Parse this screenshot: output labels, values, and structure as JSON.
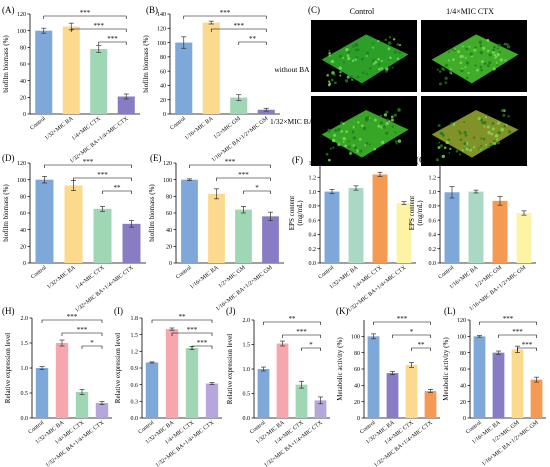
{
  "colors": {
    "blue": "#7EA7DA",
    "yellow": "#FBD98D",
    "green": "#9FD6B4",
    "purple": "#8A7CC4",
    "pink": "#F6A7AE",
    "orange": "#F59A52",
    "light_yellow": "#FCF3A4",
    "purple_light": "#B6A6DC",
    "blue_green": "#A9D8C4",
    "error_bar": "#333333"
  },
  "micrograph": {
    "panel_label": "(C)",
    "col_labels": [
      "Control",
      "1/4×MIC CTX"
    ],
    "row_labels": [
      "without BA",
      "1/32×MIC BA"
    ],
    "background": "#000000",
    "biofilm_colors": [
      "#2ea82a",
      "#43b52b",
      "#3aae28",
      "#8a9a2a"
    ]
  },
  "chart_data": [
    {
      "label": "(A)",
      "type": "bar",
      "ylabel": "biofilm biomass (%)",
      "ylim": [
        0,
        120
      ],
      "yticks": [
        0,
        20,
        40,
        60,
        80,
        100,
        120
      ],
      "categories": [
        "Control",
        "1/32×MIC BA",
        "1/4×MIC CTX",
        "1/32×MIC BA+1/4×MIC CTX"
      ],
      "values": [
        100,
        105,
        78,
        21
      ],
      "errors": [
        3,
        4,
        4,
        3
      ],
      "colors": [
        "blue",
        "yellow",
        "green",
        "purple"
      ],
      "sig": [
        {
          "from": 0,
          "to": 3,
          "text": "***"
        },
        {
          "from": 1,
          "to": 3,
          "text": "***"
        },
        {
          "from": 2,
          "to": 3,
          "text": "***"
        }
      ]
    },
    {
      "label": "(B)",
      "type": "bar",
      "ylabel": "biofilm biomass (%)",
      "ylim": [
        0,
        140
      ],
      "yticks": [
        0,
        20,
        40,
        60,
        80,
        100,
        120,
        140
      ],
      "categories": [
        "Control",
        "1/16×MIC BA",
        "1/2×MIC GM",
        "1/16×MIC BA+1/2×MIC GM"
      ],
      "values": [
        100,
        128,
        23,
        6
      ],
      "errors": [
        8,
        2,
        4,
        2
      ],
      "colors": [
        "blue",
        "yellow",
        "green",
        "purple"
      ],
      "sig": [
        {
          "from": 0,
          "to": 3,
          "text": "***"
        },
        {
          "from": 1,
          "to": 3,
          "text": "***"
        },
        {
          "from": 2,
          "to": 3,
          "text": "**"
        }
      ]
    },
    {
      "label": "(D)",
      "type": "bar",
      "ylabel": "biofilm biomass (%)",
      "ylim": [
        0,
        120
      ],
      "yticks": [
        0,
        20,
        40,
        60,
        80,
        100,
        120
      ],
      "categories": [
        "Control",
        "1/32×MIC BA",
        "1/4×MIC CTX",
        "1/32×MIC BA+1/4×MIC CTX"
      ],
      "values": [
        100,
        93,
        65,
        47
      ],
      "errors": [
        4,
        6,
        3,
        4
      ],
      "colors": [
        "blue",
        "yellow",
        "green",
        "purple"
      ],
      "sig": [
        {
          "from": 0,
          "to": 3,
          "text": "***"
        },
        {
          "from": 1,
          "to": 3,
          "text": "***"
        },
        {
          "from": 2,
          "to": 3,
          "text": "**"
        }
      ]
    },
    {
      "label": "(E)",
      "type": "bar",
      "ylabel": "biofilm biomass (%)",
      "ylim": [
        0,
        120
      ],
      "yticks": [
        0,
        20,
        40,
        60,
        80,
        100,
        120
      ],
      "categories": [
        "Control",
        "1/16×MIC BA",
        "1/2×MIC GM",
        "1/16×MIC BA+1/2×MIC GM"
      ],
      "values": [
        100,
        83,
        64,
        56
      ],
      "errors": [
        1,
        6,
        4,
        5
      ],
      "colors": [
        "blue",
        "yellow",
        "green",
        "purple"
      ],
      "sig": [
        {
          "from": 0,
          "to": 3,
          "text": "***"
        },
        {
          "from": 1,
          "to": 3,
          "text": "***"
        },
        {
          "from": 2,
          "to": 3,
          "text": "*"
        }
      ]
    },
    {
      "label": "(F)",
      "type": "bar",
      "ylabel": "EPS content\n(mg/mL)",
      "ylim": [
        0.0,
        1.4
      ],
      "yticks": [
        0.0,
        0.2,
        0.4,
        0.6,
        0.8,
        1.0,
        1.2,
        1.4
      ],
      "categories": [
        "Control",
        "1/32×MIC BA",
        "1/4×MIC CTX",
        "1/32×MIC BA+1/4×MIC CTX"
      ],
      "values": [
        1.0,
        1.05,
        1.24,
        0.84
      ],
      "errors": [
        0.03,
        0.03,
        0.03,
        0.02
      ],
      "colors": [
        "blue",
        "blue_green",
        "orange",
        "light_yellow"
      ],
      "sig": []
    },
    {
      "label": "(G)",
      "type": "bar",
      "ylabel": "EPS content\n(mg/mL)",
      "ylim": [
        0.0,
        1.4
      ],
      "yticks": [
        0.0,
        0.2,
        0.4,
        0.6,
        0.8,
        1.0,
        1.2,
        1.4
      ],
      "categories": [
        "Control",
        "1/16×MIC BA",
        "1/2×MIC GM",
        "1/16×MIC BA+1/2×MIC GM"
      ],
      "values": [
        0.99,
        1.0,
        0.87,
        0.7
      ],
      "errors": [
        0.08,
        0.02,
        0.06,
        0.03
      ],
      "colors": [
        "blue",
        "blue_green",
        "orange",
        "light_yellow"
      ],
      "sig": []
    },
    {
      "label": "(H)",
      "type": "bar",
      "ylabel": "Relative expression level",
      "ylim": [
        0.0,
        2.0
      ],
      "yticks": [
        0.0,
        0.5,
        1.0,
        1.5,
        2.0
      ],
      "categories": [
        "Control",
        "1/32×MIC BA",
        "1/4×MIC CTX",
        "1/32×MIC BA+1/4×MIC CTX"
      ],
      "values": [
        1.0,
        1.5,
        0.52,
        0.3
      ],
      "errors": [
        0.03,
        0.06,
        0.05,
        0.03
      ],
      "colors": [
        "blue",
        "pink",
        "green",
        "purple_light"
      ],
      "sig": [
        {
          "from": 0,
          "to": 3,
          "text": "***"
        },
        {
          "from": 1,
          "to": 3,
          "text": "***"
        },
        {
          "from": 2,
          "to": 3,
          "text": "*"
        }
      ]
    },
    {
      "label": "(I)",
      "type": "bar",
      "ylabel": "Relative expression level",
      "ylim": [
        0.0,
        1.8
      ],
      "yticks": [
        0.0,
        0.3,
        0.6,
        0.9,
        1.2,
        1.5,
        1.8
      ],
      "categories": [
        "Control",
        "1/32×MIC BA",
        "1/4×MIC CTX",
        "1/32×MIC BA+1/4×MIC CTX"
      ],
      "values": [
        1.0,
        1.6,
        1.26,
        0.62
      ],
      "errors": [
        0.01,
        0.02,
        0.03,
        0.02
      ],
      "colors": [
        "blue",
        "pink",
        "green",
        "purple_light"
      ],
      "sig": [
        {
          "from": 0,
          "to": 3,
          "text": "**"
        },
        {
          "from": 1,
          "to": 3,
          "text": "***"
        },
        {
          "from": 2,
          "to": 3,
          "text": "***"
        }
      ]
    },
    {
      "label": "(J)",
      "type": "bar",
      "ylabel": "Relative expression level",
      "ylim": [
        0.0,
        2.0
      ],
      "yticks": [
        0.0,
        0.5,
        1.0,
        1.5,
        2.0
      ],
      "categories": [
        "Control",
        "1/32×MIC BA",
        "1/4×MIC CTX",
        "1/32×MIC BA+1/4×MIC CTX"
      ],
      "values": [
        1.0,
        1.52,
        0.68,
        0.36
      ],
      "errors": [
        0.04,
        0.05,
        0.07,
        0.07
      ],
      "colors": [
        "blue",
        "pink",
        "green",
        "purple_light"
      ],
      "sig": [
        {
          "from": 0,
          "to": 3,
          "text": "**"
        },
        {
          "from": 1,
          "to": 3,
          "text": "***"
        },
        {
          "from": 2,
          "to": 3,
          "text": "*"
        }
      ]
    },
    {
      "label": "(K)",
      "type": "bar",
      "ylabel": "Metabolic activity (%)",
      "ylim": [
        0,
        120
      ],
      "yticks": [
        0,
        20,
        40,
        60,
        80,
        100
      ],
      "categories": [
        "Control",
        "1/32×MIC BA",
        "1/4×MIC CTX",
        "1/32×MIC BA+1/4×MIC CTX"
      ],
      "values": [
        100,
        55,
        65,
        33
      ],
      "errors": [
        3,
        2,
        3,
        2
      ],
      "colors": [
        "blue",
        "purple",
        "yellow",
        "orange"
      ],
      "sig": [
        {
          "from": 0,
          "to": 3,
          "text": "***"
        },
        {
          "from": 1,
          "to": 3,
          "text": "*"
        },
        {
          "from": 2,
          "to": 3,
          "text": "**"
        }
      ]
    },
    {
      "label": "(L)",
      "type": "bar",
      "ylabel": "Metabolic activity (%)",
      "ylim": [
        0,
        120
      ],
      "yticks": [
        0,
        20,
        40,
        60,
        80,
        100,
        120
      ],
      "categories": [
        "Control",
        "1/16×MIC BA",
        "1/2×MIC GM",
        "1/16×MIC BA+1/2×MIC GM"
      ],
      "values": [
        100,
        80,
        84,
        47
      ],
      "errors": [
        1,
        2,
        4,
        3
      ],
      "colors": [
        "blue",
        "purple",
        "yellow",
        "orange"
      ],
      "sig": [
        {
          "from": 0,
          "to": 3,
          "text": "***"
        },
        {
          "from": 1,
          "to": 3,
          "text": "***"
        },
        {
          "from": 2,
          "to": 3,
          "text": "***"
        }
      ]
    }
  ]
}
